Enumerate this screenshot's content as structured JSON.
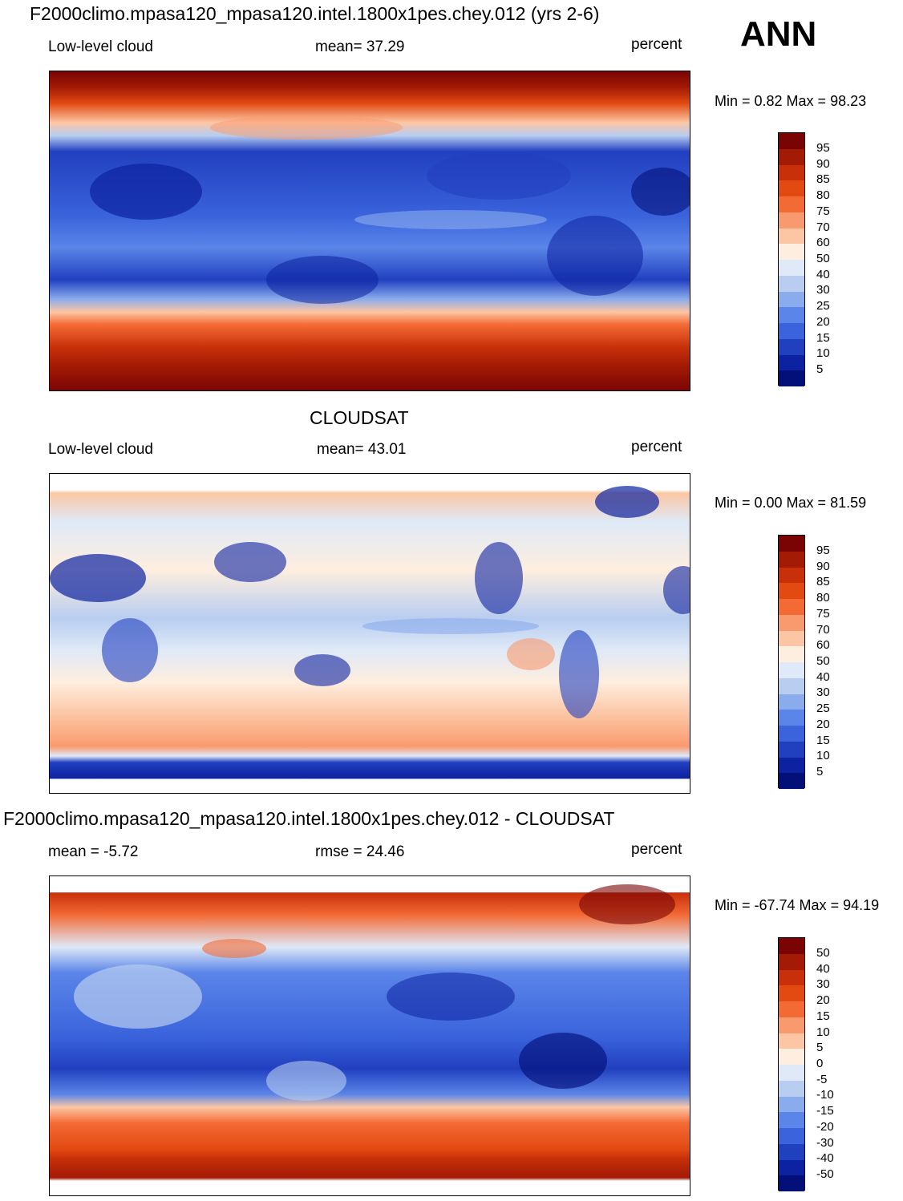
{
  "season": "ANN",
  "panels": [
    {
      "title": "F2000climo.mpasa120_mpasa120.intel.1800x1pes.chey.012 (yrs 2-6)",
      "left_label": "Low-level cloud",
      "center_label": "mean=  37.29",
      "units": "percent",
      "minmax": "Min =   0.82 Max =  98.23",
      "colorbar_labels": [
        "95",
        "90",
        "85",
        "80",
        "75",
        "70",
        "60",
        "50",
        "40",
        "30",
        "25",
        "20",
        "15",
        "10",
        "5"
      ]
    },
    {
      "title": "CLOUDSAT",
      "left_label": "Low-level cloud",
      "center_label": "mean=  43.01",
      "units": "percent",
      "minmax": "Min =   0.00 Max =  81.59",
      "colorbar_labels": [
        "95",
        "90",
        "85",
        "80",
        "75",
        "70",
        "60",
        "50",
        "40",
        "30",
        "25",
        "20",
        "15",
        "10",
        "5"
      ]
    },
    {
      "title": "F2000climo.mpasa120_mpasa120.intel.1800x1pes.chey.012 - CLOUDSAT",
      "left_label": "mean =  -5.72",
      "center_label": "rmse =  24.46",
      "units": "percent",
      "minmax": "Min = -67.74 Max =  94.19",
      "colorbar_labels": [
        "50",
        "40",
        "30",
        "20",
        "15",
        "10",
        "5",
        "0",
        "-5",
        "-10",
        "-15",
        "-20",
        "-30",
        "-40",
        "-50"
      ]
    }
  ],
  "colorbar_colors": [
    "#7a0403",
    "#a31a05",
    "#c8300a",
    "#e34a12",
    "#f46a35",
    "#f99a6e",
    "#fcc6a4",
    "#feeedf",
    "#dfe9f7",
    "#b8cdf0",
    "#8aabec",
    "#5b85e8",
    "#3a63dc",
    "#2140c0",
    "#0d22a0",
    "#03107a"
  ],
  "colors": {
    "ocean_low": "#3a63dc",
    "land_outline": "#000000"
  }
}
